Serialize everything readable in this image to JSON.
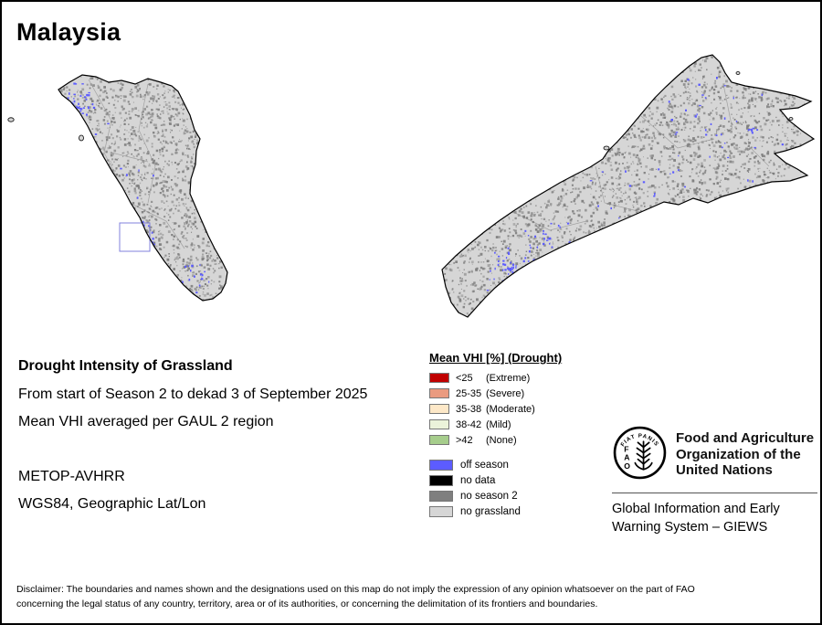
{
  "page": {
    "title": "Malaysia"
  },
  "info": {
    "heading": "Drought Intensity of Grassland",
    "period_line": "From start of Season 2 to dekad 3 of September 2025",
    "aggregation_line": "Mean VHI averaged per GAUL 2 region",
    "sensor": "METOP-AVHRR",
    "projection": "WGS84, Geographic Lat/Lon"
  },
  "legend": {
    "title": "Mean VHI [%] (Drought)",
    "classes": [
      {
        "value": "<25",
        "qualifier": "(Extreme)",
        "color": "#c00000"
      },
      {
        "value": "25-35",
        "qualifier": "(Severe)",
        "color": "#ea9b80"
      },
      {
        "value": "35-38",
        "qualifier": "(Moderate)",
        "color": "#fde8c8"
      },
      {
        "value": "38-42",
        "qualifier": "(Mild)",
        "color": "#ebf3da"
      },
      {
        "value": ">42",
        "qualifier": "(None)",
        "color": "#a6cd8c"
      }
    ],
    "extras": [
      {
        "label": "off season",
        "color": "#5c5cff"
      },
      {
        "label": "no data",
        "color": "#000000"
      },
      {
        "label": "no season 2",
        "color": "#7f7f7f"
      },
      {
        "label": "no grassland",
        "color": "#d6d6d6"
      }
    ]
  },
  "fao": {
    "logo_letters": {
      "l1": "F",
      "l2": "A",
      "l3": "O"
    },
    "logo_motto": "FIAT PANIS",
    "org_lines": [
      "Food and Agriculture",
      "Organization of the",
      "United Nations"
    ],
    "giews_lines": [
      "Global Information and Early",
      "Warning System – GIEWS"
    ]
  },
  "disclaimer": {
    "lines": [
      "Disclaimer: The boundaries and names shown and the designations used on this map do not imply the expression of any opinion whatsoever on the part of FAO",
      "concerning the legal status of any country, territory, area or of its authorities, or concerning the delimitation of its frontiers and boundaries."
    ]
  }
}
